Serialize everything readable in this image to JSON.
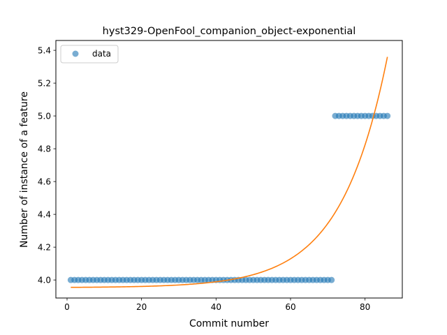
{
  "chart_data": {
    "type": "scatter",
    "title": "hyst329-OpenFool_companion_object-exponential",
    "xlabel": "Commit number",
    "ylabel": "Number of instance of a feature",
    "xlim": [
      -3,
      90
    ],
    "ylim": [
      3.89,
      5.46
    ],
    "xticks": [
      0,
      20,
      40,
      60,
      80
    ],
    "yticks": [
      4.0,
      4.2,
      4.4,
      4.6,
      4.8,
      5.0,
      5.2,
      5.4
    ],
    "grid": false,
    "legend": {
      "placement": "upper-left",
      "entries": [
        "data"
      ]
    },
    "colors": {
      "data": "#1f77b4",
      "fit": "#ff7f0e"
    },
    "series": [
      {
        "name": "data",
        "kind": "scatter",
        "segments": [
          {
            "x_from": 1,
            "x_to": 71,
            "y": 4.0
          },
          {
            "x_from": 72,
            "x_to": 86,
            "y": 5.0
          }
        ]
      },
      {
        "kind": "line",
        "model": "exponential",
        "x_range": [
          1,
          86
        ],
        "y_at_start": 3.955,
        "y_at_end": 5.36,
        "growth_rate": 0.08
      }
    ]
  }
}
